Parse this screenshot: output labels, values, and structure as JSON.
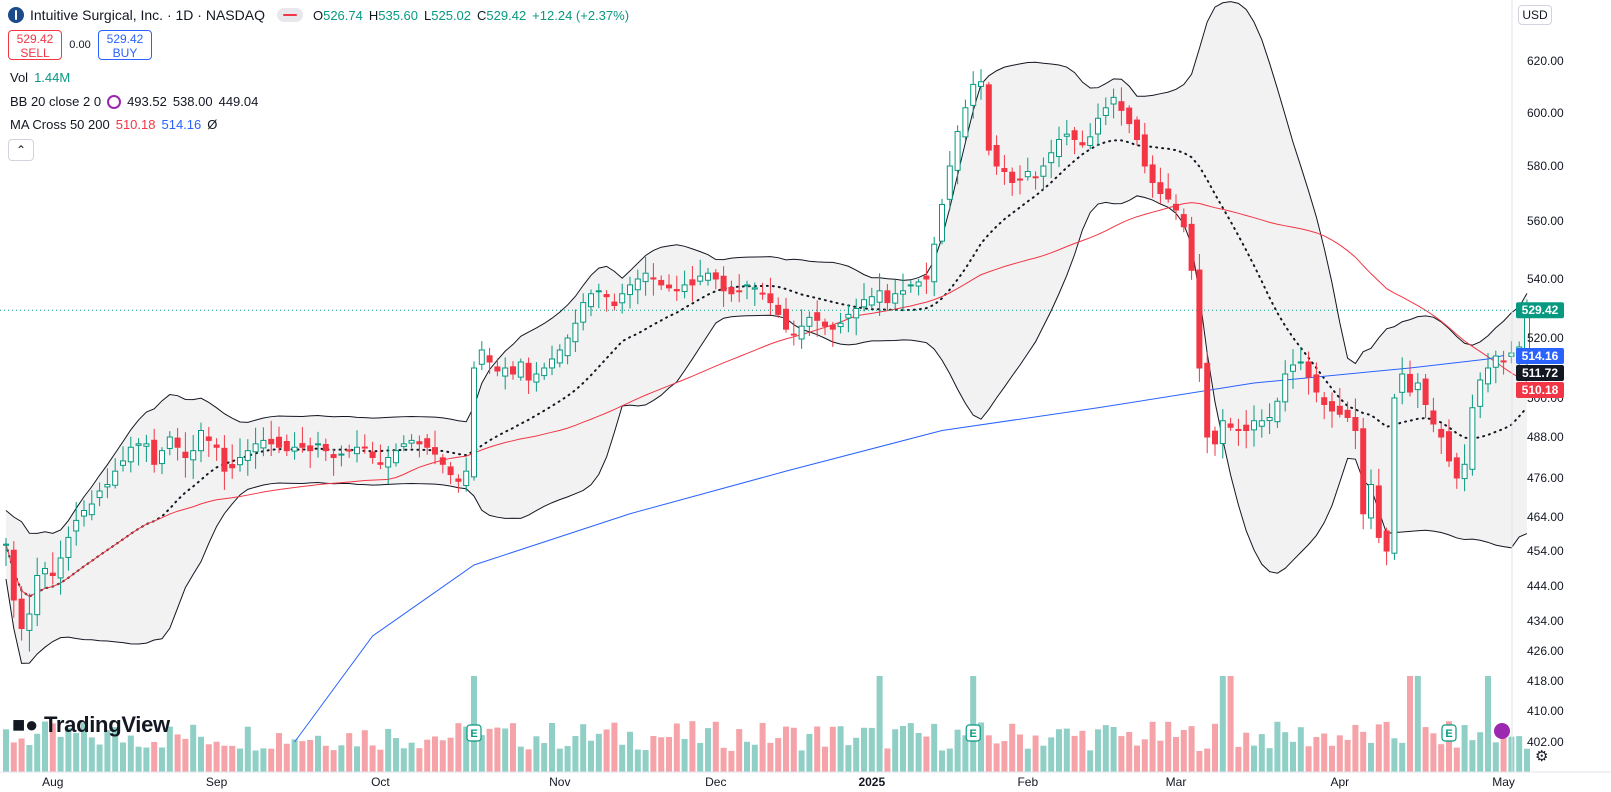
{
  "header": {
    "title": "Intuitive Surgical, Inc. · 1D · NASDAQ",
    "open_label": "O",
    "open": "526.74",
    "high_label": "H",
    "high": "535.60",
    "low_label": "L",
    "low": "525.02",
    "close_label": "C",
    "close": "529.42",
    "change": "+12.24 (+2.37%)"
  },
  "trade": {
    "sell_price": "529.42",
    "sell_label": "SELL",
    "spread": "0.00",
    "buy_price": "529.42",
    "buy_label": "BUY"
  },
  "indicators": {
    "vol_label": "Vol",
    "vol_value": "1.44M",
    "bb_label": "BB 20 close 2 0",
    "bb_basis": "493.52",
    "bb_upper": "538.00",
    "bb_lower": "449.04",
    "ma_label": "MA Cross 50 200",
    "ma50": "510.18",
    "ma200": "514.16",
    "ma_tail": "Ø"
  },
  "currency": "USD",
  "brand": "TradingView",
  "colors": {
    "up": "#089981",
    "down": "#f23645",
    "vol_up": "#8fcfc6",
    "vol_down": "#f5a3a8",
    "ma50": "#f23645",
    "ma200": "#2962ff",
    "bb_band": "#131722",
    "bb_fill": "#f2f2f2",
    "basis": "#131722"
  },
  "chart_data": {
    "type": "candlestick",
    "y_ticks": [
      402,
      410,
      418,
      426,
      434,
      444,
      454,
      464,
      476,
      488,
      500,
      520,
      540,
      560,
      580,
      600,
      620
    ],
    "x_labels": [
      {
        "label": "Aug",
        "i": 6
      },
      {
        "label": "Sep",
        "i": 27
      },
      {
        "label": "Oct",
        "i": 48
      },
      {
        "label": "Nov",
        "i": 71
      },
      {
        "label": "Dec",
        "i": 91
      },
      {
        "label": "2025",
        "i": 111
      },
      {
        "label": "Feb",
        "i": 131
      },
      {
        "label": "Mar",
        "i": 150
      },
      {
        "label": "Apr",
        "i": 171
      },
      {
        "label": "May",
        "i": 192
      }
    ],
    "price_tags": [
      {
        "value": "529.42",
        "price": 529.42,
        "color": "#089981"
      },
      {
        "value": "514.16",
        "price": 514.16,
        "color": "#2962ff"
      },
      {
        "value": "511.72",
        "price": 511.72,
        "color": "#131722"
      },
      {
        "value": "510.18",
        "price": 510.18,
        "color": "#f23645"
      }
    ],
    "last_price": 529.42,
    "earnings_marker": "E",
    "earnings_index": [
      60,
      124,
      185
    ],
    "close": [
      456,
      440,
      432,
      436,
      447,
      449,
      447,
      452,
      458,
      463,
      466,
      468,
      472,
      474,
      478,
      481,
      485,
      486,
      486,
      480,
      484,
      488,
      485,
      482,
      484,
      490,
      487,
      485,
      478,
      479,
      482,
      484,
      486,
      487,
      486,
      485,
      484,
      485,
      485,
      484,
      486,
      484,
      482,
      483,
      484,
      485,
      485,
      482,
      480,
      482,
      484,
      486,
      487,
      486,
      485,
      483,
      480,
      477,
      475,
      478,
      510,
      516,
      512,
      509,
      510,
      508,
      512,
      506,
      508,
      510,
      513,
      516,
      520,
      525,
      532,
      535,
      536,
      534,
      531,
      535,
      538,
      540,
      542,
      540,
      538,
      537,
      536,
      538,
      538,
      541,
      542,
      540,
      536,
      535,
      536,
      538,
      537,
      535,
      532,
      528,
      523,
      521,
      524,
      527,
      526,
      524,
      523,
      525,
      528,
      530,
      533,
      534,
      536,
      532,
      535,
      536,
      538,
      539,
      540,
      552,
      566,
      580,
      593,
      602,
      611,
      612,
      586,
      580,
      578,
      574,
      575,
      578,
      576,
      580,
      585,
      590,
      592,
      590,
      588,
      591,
      598,
      602,
      606,
      601,
      596,
      590,
      580,
      574,
      570,
      568,
      564,
      558,
      543,
      510,
      488,
      486,
      493,
      491,
      490,
      490,
      493,
      493,
      494,
      499,
      508,
      511,
      512,
      507,
      502,
      498,
      496,
      495,
      494,
      490,
      465,
      474,
      458,
      454,
      500,
      508,
      502,
      505,
      498,
      492,
      488,
      481,
      476,
      480,
      497,
      506,
      510,
      514,
      512,
      515,
      517,
      529.42
    ],
    "ma200_points": [
      [
        37,
        402
      ],
      [
        47,
        430
      ],
      [
        60,
        450
      ],
      [
        80,
        465
      ],
      [
        100,
        478
      ],
      [
        120,
        490
      ],
      [
        140,
        497
      ],
      [
        160,
        505
      ],
      [
        180,
        510
      ],
      [
        190,
        513
      ],
      [
        192,
        514.16
      ]
    ]
  }
}
